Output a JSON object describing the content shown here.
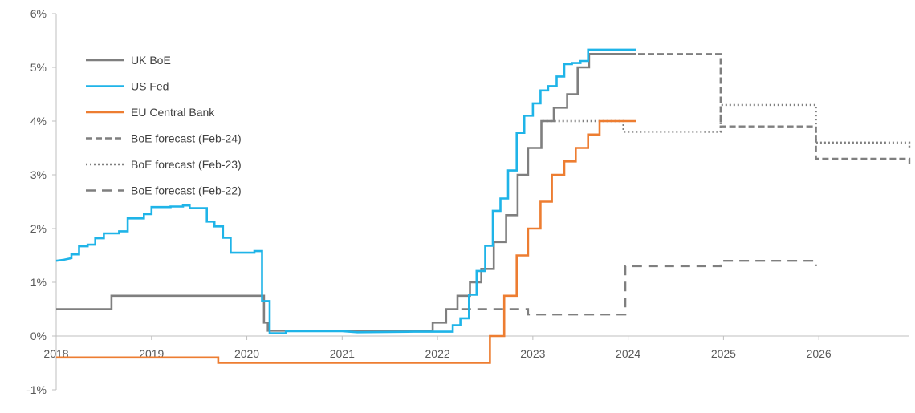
{
  "chart_data": {
    "type": "line",
    "title": "",
    "xlabel": "",
    "ylabel": "",
    "xlim": [
      2018.0,
      2026.95
    ],
    "ylim": [
      -1,
      6
    ],
    "x_ticks": [
      "2018",
      "2019",
      "2020",
      "2021",
      "2022",
      "2023",
      "2024",
      "2025",
      "2026"
    ],
    "y_ticks": [
      "-1%",
      "0%",
      "1%",
      "2%",
      "3%",
      "4%",
      "5%",
      "6%"
    ],
    "grid": false,
    "legend_position": "top-left",
    "series": [
      {
        "name": "UK BoE",
        "color": "#7f7f7f",
        "style": "solid",
        "points": [
          [
            2018.0,
            0.5
          ],
          [
            2018.58,
            0.5
          ],
          [
            2018.58,
            0.75
          ],
          [
            2020.18,
            0.75
          ],
          [
            2020.18,
            0.25
          ],
          [
            2020.22,
            0.25
          ],
          [
            2020.22,
            0.1
          ],
          [
            2021.95,
            0.1
          ],
          [
            2021.95,
            0.25
          ],
          [
            2022.09,
            0.25
          ],
          [
            2022.09,
            0.5
          ],
          [
            2022.21,
            0.5
          ],
          [
            2022.21,
            0.75
          ],
          [
            2022.34,
            0.75
          ],
          [
            2022.34,
            1.0
          ],
          [
            2022.46,
            1.0
          ],
          [
            2022.46,
            1.25
          ],
          [
            2022.59,
            1.25
          ],
          [
            2022.59,
            1.75
          ],
          [
            2022.72,
            1.75
          ],
          [
            2022.72,
            2.25
          ],
          [
            2022.84,
            2.25
          ],
          [
            2022.84,
            3.0
          ],
          [
            2022.95,
            3.0
          ],
          [
            2022.95,
            3.5
          ],
          [
            2023.09,
            3.5
          ],
          [
            2023.09,
            4.0
          ],
          [
            2023.22,
            4.0
          ],
          [
            2023.22,
            4.25
          ],
          [
            2023.36,
            4.25
          ],
          [
            2023.36,
            4.5
          ],
          [
            2023.47,
            4.5
          ],
          [
            2023.47,
            5.0
          ],
          [
            2023.59,
            5.0
          ],
          [
            2023.59,
            5.25
          ],
          [
            2024.08,
            5.25
          ]
        ]
      },
      {
        "name": "US Fed",
        "color": "#1fb4e8",
        "style": "solid",
        "points": [
          [
            2018.0,
            1.4
          ],
          [
            2018.08,
            1.42
          ],
          [
            2018.16,
            1.45
          ],
          [
            2018.16,
            1.52
          ],
          [
            2018.24,
            1.52
          ],
          [
            2018.24,
            1.67
          ],
          [
            2018.33,
            1.67
          ],
          [
            2018.33,
            1.7
          ],
          [
            2018.41,
            1.7
          ],
          [
            2018.41,
            1.82
          ],
          [
            2018.5,
            1.82
          ],
          [
            2018.5,
            1.91
          ],
          [
            2018.66,
            1.91
          ],
          [
            2018.66,
            1.95
          ],
          [
            2018.75,
            1.95
          ],
          [
            2018.75,
            2.19
          ],
          [
            2018.92,
            2.19
          ],
          [
            2018.92,
            2.27
          ],
          [
            2019.0,
            2.27
          ],
          [
            2019.0,
            2.4
          ],
          [
            2019.2,
            2.4
          ],
          [
            2019.2,
            2.41
          ],
          [
            2019.33,
            2.41
          ],
          [
            2019.33,
            2.43
          ],
          [
            2019.4,
            2.43
          ],
          [
            2019.4,
            2.38
          ],
          [
            2019.58,
            2.38
          ],
          [
            2019.58,
            2.13
          ],
          [
            2019.66,
            2.13
          ],
          [
            2019.66,
            2.04
          ],
          [
            2019.75,
            2.04
          ],
          [
            2019.75,
            1.83
          ],
          [
            2019.83,
            1.83
          ],
          [
            2019.83,
            1.55
          ],
          [
            2020.08,
            1.55
          ],
          [
            2020.08,
            1.58
          ],
          [
            2020.16,
            1.58
          ],
          [
            2020.16,
            0.65
          ],
          [
            2020.24,
            0.65
          ],
          [
            2020.24,
            0.05
          ],
          [
            2020.41,
            0.05
          ],
          [
            2020.41,
            0.09
          ],
          [
            2021.0,
            0.09
          ],
          [
            2021.16,
            0.07
          ],
          [
            2021.75,
            0.08
          ],
          [
            2022.16,
            0.08
          ],
          [
            2022.16,
            0.2
          ],
          [
            2022.24,
            0.2
          ],
          [
            2022.24,
            0.33
          ],
          [
            2022.33,
            0.33
          ],
          [
            2022.33,
            0.77
          ],
          [
            2022.41,
            0.77
          ],
          [
            2022.41,
            1.21
          ],
          [
            2022.5,
            1.21
          ],
          [
            2022.5,
            1.68
          ],
          [
            2022.58,
            1.68
          ],
          [
            2022.58,
            2.33
          ],
          [
            2022.66,
            2.33
          ],
          [
            2022.66,
            2.56
          ],
          [
            2022.74,
            2.56
          ],
          [
            2022.74,
            3.08
          ],
          [
            2022.83,
            3.08
          ],
          [
            2022.83,
            3.78
          ],
          [
            2022.91,
            3.78
          ],
          [
            2022.91,
            4.1
          ],
          [
            2023.0,
            4.1
          ],
          [
            2023.0,
            4.33
          ],
          [
            2023.08,
            4.33
          ],
          [
            2023.08,
            4.57
          ],
          [
            2023.16,
            4.57
          ],
          [
            2023.16,
            4.65
          ],
          [
            2023.25,
            4.65
          ],
          [
            2023.25,
            4.83
          ],
          [
            2023.33,
            4.83
          ],
          [
            2023.33,
            5.06
          ],
          [
            2023.41,
            5.06
          ],
          [
            2023.41,
            5.08
          ],
          [
            2023.5,
            5.08
          ],
          [
            2023.5,
            5.12
          ],
          [
            2023.58,
            5.12
          ],
          [
            2023.58,
            5.33
          ],
          [
            2024.08,
            5.33
          ]
        ]
      },
      {
        "name": "EU Central Bank",
        "color": "#ed7d31",
        "style": "solid",
        "points": [
          [
            2018.0,
            -0.4
          ],
          [
            2019.7,
            -0.4
          ],
          [
            2019.7,
            -0.5
          ],
          [
            2022.55,
            -0.5
          ],
          [
            2022.55,
            0.0
          ],
          [
            2022.7,
            0.0
          ],
          [
            2022.7,
            0.75
          ],
          [
            2022.83,
            0.75
          ],
          [
            2022.83,
            1.5
          ],
          [
            2022.95,
            1.5
          ],
          [
            2022.95,
            2.0
          ],
          [
            2023.08,
            2.0
          ],
          [
            2023.08,
            2.5
          ],
          [
            2023.2,
            2.5
          ],
          [
            2023.2,
            3.0
          ],
          [
            2023.33,
            3.0
          ],
          [
            2023.33,
            3.25
          ],
          [
            2023.45,
            3.25
          ],
          [
            2023.45,
            3.5
          ],
          [
            2023.58,
            3.5
          ],
          [
            2023.58,
            3.75
          ],
          [
            2023.7,
            3.75
          ],
          [
            2023.7,
            4.0
          ],
          [
            2024.08,
            4.0
          ]
        ]
      },
      {
        "name": "BoE forecast (Feb-24)",
        "color": "#7f7f7f",
        "style": "dashed",
        "points": [
          [
            2023.7,
            5.25
          ],
          [
            2024.97,
            5.25
          ],
          [
            2024.97,
            3.9
          ],
          [
            2025.97,
            3.9
          ],
          [
            2025.97,
            3.3
          ],
          [
            2026.95,
            3.3
          ],
          [
            2026.95,
            3.2
          ]
        ]
      },
      {
        "name": "BoE forecast (Feb-23)",
        "color": "#7f7f7f",
        "style": "dotted",
        "points": [
          [
            2023.1,
            4.0
          ],
          [
            2023.95,
            4.0
          ],
          [
            2023.95,
            3.8
          ],
          [
            2024.97,
            3.8
          ],
          [
            2024.97,
            4.3
          ],
          [
            2025.97,
            4.3
          ],
          [
            2025.97,
            3.6
          ],
          [
            2026.95,
            3.6
          ],
          [
            2026.95,
            3.5
          ]
        ]
      },
      {
        "name": "BoE forecast (Feb-22)",
        "color": "#7f7f7f",
        "style": "longdash",
        "points": [
          [
            2022.25,
            0.5
          ],
          [
            2022.95,
            0.5
          ],
          [
            2022.95,
            0.4
          ],
          [
            2023.97,
            0.4
          ],
          [
            2023.97,
            1.3
          ],
          [
            2024.97,
            1.3
          ],
          [
            2024.97,
            1.4
          ],
          [
            2025.97,
            1.4
          ],
          [
            2025.97,
            1.3
          ]
        ]
      }
    ]
  }
}
